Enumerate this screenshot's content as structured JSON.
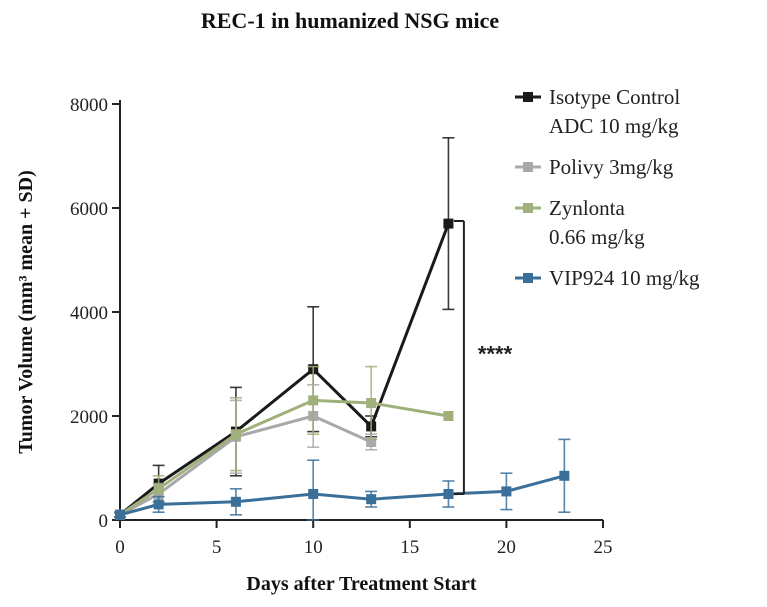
{
  "chart_data": {
    "type": "line",
    "title": "REC-1 in humanized NSG mice",
    "xlabel": "Days after Treatment Start",
    "ylabel": "Tumor Volume (mm³ mean + SD)",
    "xlim": [
      0,
      25
    ],
    "ylim": [
      0,
      8000
    ],
    "xticks": [
      "0",
      "5",
      "10",
      "15",
      "20",
      "25"
    ],
    "yticks": [
      "0",
      "2000",
      "4000",
      "6000",
      "8000"
    ],
    "legend_position": "top-right",
    "annotation": "****",
    "series": [
      {
        "name_lines": [
          "Isotype Control",
          "ADC 10 mg/kg"
        ],
        "color": "#1a1a1a",
        "x": [
          0,
          2,
          6,
          10,
          13,
          17
        ],
        "y": [
          100,
          700,
          1700,
          2900,
          1800,
          5700
        ],
        "err": [
          50,
          350,
          850,
          1200,
          200,
          1650
        ]
      },
      {
        "name_lines": [
          "Polivy 3mg/kg"
        ],
        "color": "#a9a9a9",
        "x": [
          0,
          2,
          6,
          10,
          13
        ],
        "y": [
          100,
          500,
          1600,
          2000,
          1500
        ],
        "err": [
          40,
          200,
          700,
          600,
          150
        ]
      },
      {
        "name_lines": [
          "Zynlonta",
          "0.66 mg/kg"
        ],
        "color": "#9fb07a",
        "x": [
          0,
          2,
          6,
          10,
          13,
          17
        ],
        "y": [
          100,
          600,
          1650,
          2300,
          2250,
          2000
        ],
        "err": [
          40,
          250,
          700,
          650,
          700,
          0
        ]
      },
      {
        "name_lines": [
          "VIP924 10 mg/kg"
        ],
        "color": "#3a6f99",
        "x": [
          0,
          2,
          6,
          10,
          13,
          17,
          20,
          23
        ],
        "y": [
          100,
          300,
          350,
          500,
          400,
          500,
          550,
          850
        ],
        "err": [
          40,
          150,
          250,
          650,
          150,
          250,
          350,
          700
        ]
      }
    ]
  }
}
